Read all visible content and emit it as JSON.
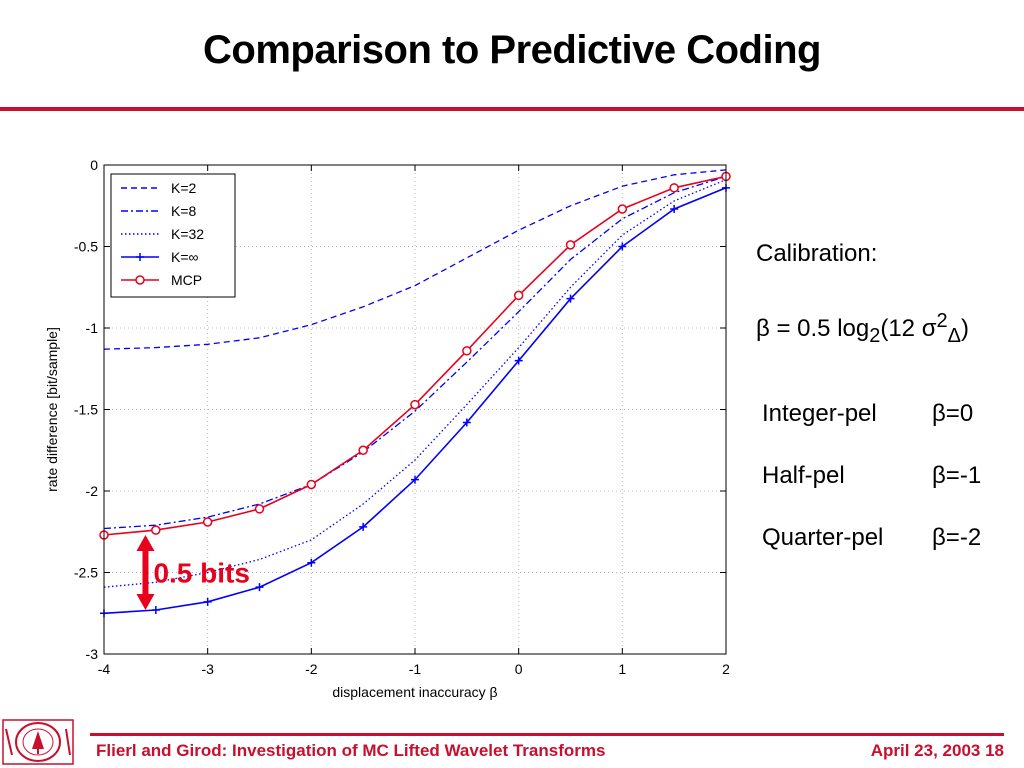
{
  "slide": {
    "title": "Comparison to Predictive Coding",
    "calibration": {
      "title": "Calibration:",
      "formula_lead": "β = 0.5 log",
      "formula_sub1": "2",
      "formula_mid": "(12 σ",
      "formula_sup": "2",
      "formula_sub2": "Δ",
      "formula_tail": ")"
    },
    "pel_table": [
      {
        "name": "Integer-pel",
        "value": "β=0"
      },
      {
        "name": "Half-pel",
        "value": "β=-1"
      },
      {
        "name": "Quarter-pel",
        "value": "β=-2"
      }
    ],
    "footer": {
      "left": "Flierl and Girod: Investigation of MC Lifted Wavelet Transforms",
      "right": "April 23, 2003  18"
    },
    "accent_color": "#c8102e"
  },
  "chart_data": {
    "type": "line",
    "title": "",
    "xlabel": "displacement inaccuracy  β",
    "ylabel": "rate difference [bit/sample]",
    "xlim": [
      -4,
      2
    ],
    "ylim": [
      -3,
      0
    ],
    "xticks": [
      -4,
      -3,
      -2,
      -1,
      0,
      1,
      2
    ],
    "xtick_labels": [
      "-4",
      "-3",
      "-2",
      "-1",
      "0",
      "1",
      "2"
    ],
    "yticks": [
      0,
      -0.5,
      -1,
      -1.5,
      -2,
      -2.5,
      -3
    ],
    "ytick_labels": [
      "0",
      "-0.5",
      "-1",
      "-1.5",
      "-2",
      "-2.5",
      "-3"
    ],
    "grid": true,
    "legend_position": "top-left",
    "x": [
      -4,
      -3.5,
      -3,
      -2.5,
      -2,
      -1.5,
      -1,
      -0.5,
      0,
      0.5,
      1,
      1.5,
      2
    ],
    "series": [
      {
        "name": "K=2",
        "style": "dashed",
        "color": "#0000ff",
        "marker": "none",
        "values": [
          -1.13,
          -1.12,
          -1.1,
          -1.06,
          -0.98,
          -0.87,
          -0.74,
          -0.57,
          -0.4,
          -0.25,
          -0.13,
          -0.06,
          -0.03
        ]
      },
      {
        "name": "K=8",
        "style": "dashdot",
        "color": "#0000ff",
        "marker": "none",
        "values": [
          -2.23,
          -2.21,
          -2.16,
          -2.08,
          -1.96,
          -1.76,
          -1.51,
          -1.21,
          -0.9,
          -0.58,
          -0.33,
          -0.17,
          -0.07
        ]
      },
      {
        "name": "K=32",
        "style": "dotted",
        "color": "#0000ff",
        "marker": "none",
        "values": [
          -2.59,
          -2.56,
          -2.5,
          -2.42,
          -2.3,
          -2.08,
          -1.81,
          -1.47,
          -1.12,
          -0.75,
          -0.43,
          -0.22,
          -0.09
        ]
      },
      {
        "name": "K=∞",
        "style": "solid",
        "color": "#0000ff",
        "marker": "plus",
        "values": [
          -2.75,
          -2.73,
          -2.68,
          -2.59,
          -2.44,
          -2.22,
          -1.93,
          -1.58,
          -1.2,
          -0.82,
          -0.5,
          -0.27,
          -0.14
        ]
      },
      {
        "name": "MCP",
        "style": "solid",
        "color": "#e8001c",
        "marker": "circle",
        "values": [
          -2.27,
          -2.24,
          -2.19,
          -2.11,
          -1.96,
          -1.75,
          -1.47,
          -1.14,
          -0.8,
          -0.49,
          -0.27,
          -0.14,
          -0.07
        ]
      }
    ],
    "annotations": [
      {
        "text": "0.5 bits",
        "x": -3.6,
        "y_from": -2.27,
        "y_to": -2.73,
        "color": "#e8001c"
      }
    ]
  }
}
